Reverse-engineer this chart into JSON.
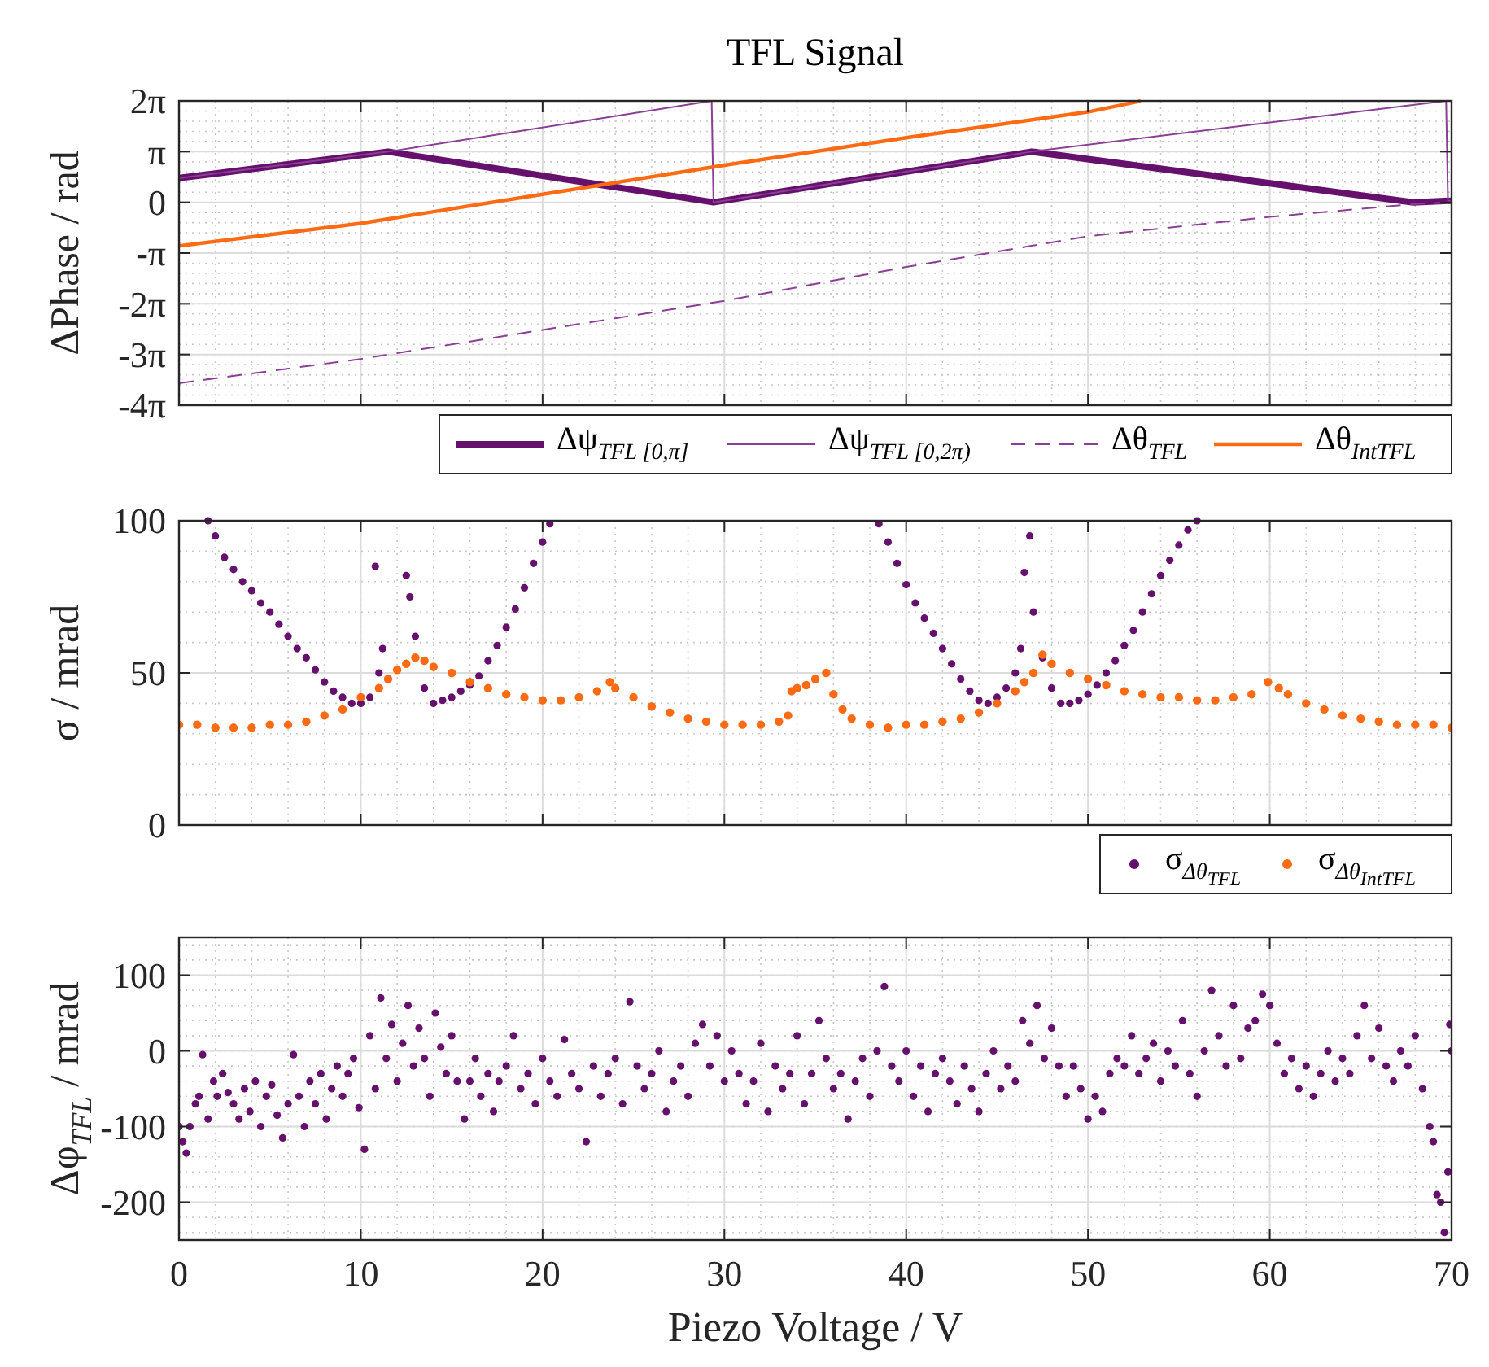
{
  "chart_data": [
    {
      "type": "line",
      "title": "TFL Signal",
      "ylabel": "ΔPhase / rad",
      "xlim": [
        0,
        70
      ],
      "xticks": [
        0,
        10,
        20,
        30,
        40,
        50,
        60,
        70
      ],
      "ylim": [
        -12.566,
        6.283
      ],
      "yticks": [
        {
          "value": -12.566,
          "label": "-4π"
        },
        {
          "value": -9.425,
          "label": "-3π"
        },
        {
          "value": -6.283,
          "label": "-2π"
        },
        {
          "value": -3.142,
          "label": "-π"
        },
        {
          "value": 0,
          "label": "0"
        },
        {
          "value": 3.142,
          "label": "π"
        },
        {
          "value": 6.283,
          "label": "2π"
        }
      ],
      "tick_labels": "y",
      "grid": true,
      "legend": "bottom",
      "series": [
        {
          "name": "Δψ$_{TFL [0,π]}$",
          "color": "#66106e",
          "line_style": "solid",
          "x": [
            0,
            11.5,
            29.4,
            46.9,
            67.9,
            70
          ],
          "values": [
            1.5,
            3.14,
            0,
            3.14,
            0,
            0.1
          ]
        },
        {
          "name": "Δψ$_{TFL [0,2π)}$",
          "color": "#8a3f94",
          "line_style": "solid",
          "x": [
            0,
            11.5,
            29.3,
            29.4,
            46.9,
            69.7,
            69.8,
            70
          ],
          "values": [
            1.5,
            3.14,
            6.28,
            0,
            3.14,
            6.28,
            0.1,
            0.1
          ]
        },
        {
          "name": "Δθ$_{TFL}$",
          "color": "#8a3f94",
          "line_style": "dashed",
          "x": [
            0,
            10,
            20,
            30,
            40,
            50,
            60,
            68,
            70
          ],
          "values": [
            -11.2,
            -9.7,
            -7.9,
            -6.1,
            -4,
            -2.1,
            -0.9,
            -0.1,
            0
          ]
        },
        {
          "name": "Δθ$_{IntTFL}$",
          "color": "#ff6a13",
          "line_style": "solid",
          "x": [
            0,
            10,
            20,
            30,
            40,
            50,
            52.9
          ],
          "values": [
            -2.7,
            -1.3,
            0.5,
            2.3,
            4,
            5.6,
            6.28
          ]
        }
      ]
    },
    {
      "type": "scatter",
      "ylabel": "σ / mrad",
      "xlim": [
        0,
        70
      ],
      "xticks": [
        0,
        10,
        20,
        30,
        40,
        50,
        60,
        70
      ],
      "ylim": [
        0,
        100
      ],
      "yticks": [
        0,
        50,
        100
      ],
      "tick_labels": "y",
      "grid": true,
      "legend": "bottom right",
      "marker": "circle",
      "series": [
        {
          "name": "σ$_{Δθ}$$_{TFL}$",
          "color": "#66106e",
          "x": [
            1.6,
            2,
            2.5,
            3,
            3.5,
            4,
            4.5,
            5,
            5.5,
            6,
            6.5,
            7,
            7.5,
            8,
            8.5,
            9,
            9.5,
            10,
            10.5,
            11,
            11.2,
            10.8,
            12.5,
            12.7,
            13,
            13.5,
            14,
            14.5,
            15,
            15.5,
            16,
            16.5,
            17,
            17.5,
            18,
            18.5,
            19,
            19.5,
            20,
            20.4,
            38.5,
            39,
            39.5,
            40,
            40.5,
            41,
            41.5,
            42,
            42.5,
            43,
            43.5,
            44,
            44.5,
            45,
            45.5,
            46,
            46.3,
            46.5,
            46.8,
            47,
            47.5,
            48,
            48.5,
            49,
            49.5,
            50,
            50.5,
            51,
            51.5,
            52,
            52.5,
            53,
            53.5,
            54,
            54.5,
            55,
            55.5,
            56
          ],
          "values": [
            100,
            95,
            88,
            84,
            80,
            77,
            73,
            70,
            66,
            62,
            58,
            55,
            51,
            47,
            44,
            42,
            40,
            40,
            42,
            50,
            58,
            85,
            82,
            75,
            62,
            45,
            40,
            41,
            42,
            44,
            46,
            49,
            54,
            59,
            65,
            71,
            78,
            86,
            93,
            99,
            99,
            93,
            86,
            79,
            73,
            68,
            63,
            58,
            53,
            48,
            44,
            41,
            40,
            42,
            45,
            50,
            58,
            83,
            95,
            70,
            55,
            45,
            40,
            40,
            41,
            43,
            46,
            50,
            54,
            59,
            64,
            70,
            76,
            82,
            87,
            92,
            97,
            100
          ]
        },
        {
          "name": "σ$_{Δθ}$$_{IntTFL}$",
          "color": "#ff6a13",
          "x": [
            0,
            1,
            2,
            3,
            4,
            5,
            6,
            7,
            8,
            9,
            10,
            11,
            11.5,
            12,
            12.5,
            13,
            13.5,
            14,
            15,
            16,
            17,
            18,
            19,
            20,
            21,
            22,
            23,
            23.7,
            24,
            25,
            26,
            27,
            28,
            29,
            30,
            31,
            32,
            33,
            33.5,
            33.7,
            34,
            34.5,
            35,
            35.6,
            36,
            36.5,
            37,
            38,
            39,
            40,
            41,
            42,
            43,
            44,
            45,
            46,
            46.5,
            47,
            47.5,
            48,
            49,
            50,
            51,
            52,
            53,
            54,
            55,
            56,
            57,
            58,
            59,
            59.9,
            60.5,
            61,
            62,
            63,
            64,
            65,
            66,
            67,
            68,
            69,
            70
          ],
          "values": [
            33,
            33,
            32,
            32,
            32,
            33,
            33,
            34,
            36,
            38,
            42,
            45,
            48,
            51,
            53,
            55,
            54,
            52,
            50,
            47,
            45,
            43,
            42,
            41,
            41,
            42,
            44,
            47,
            45,
            42,
            39,
            37,
            35,
            34,
            33,
            33,
            33,
            34,
            36,
            44,
            45,
            46,
            48,
            50,
            43,
            38,
            35,
            33,
            32,
            33,
            33,
            34,
            35,
            37,
            40,
            44,
            47,
            50,
            56,
            53,
            50,
            48,
            46,
            44,
            43,
            42,
            42,
            41,
            41,
            42,
            43,
            47,
            45,
            43,
            40,
            38,
            36,
            35,
            34,
            33,
            33,
            33,
            32
          ]
        }
      ]
    },
    {
      "type": "scatter",
      "xlabel": "Piezo Voltage / V",
      "ylabel": "Δφ$_{TFL}$ / mrad",
      "xlim": [
        0,
        70
      ],
      "xticks": [
        0,
        10,
        20,
        30,
        40,
        50,
        60,
        70
      ],
      "ylim": [
        -250,
        150
      ],
      "yticks": [
        -200,
        -100,
        0,
        100
      ],
      "grid": true,
      "marker": "circle",
      "series": [
        {
          "color": "#66106e",
          "x": [
            0,
            0.2,
            0.4,
            0.6,
            0.9,
            1.1,
            1.3,
            1.6,
            1.9,
            2.1,
            2.4,
            2.7,
            3,
            3.3,
            3.6,
            3.9,
            4.2,
            4.5,
            4.8,
            5.1,
            5.4,
            5.7,
            6,
            6.3,
            6.6,
            6.9,
            7.2,
            7.5,
            7.8,
            8.1,
            8.4,
            8.7,
            9,
            9.3,
            9.6,
            9.9,
            10.2,
            10.5,
            10.8,
            11.1,
            11.4,
            11.7,
            12,
            12.3,
            12.6,
            12.9,
            13.2,
            13.5,
            13.8,
            14.1,
            14.4,
            14.7,
            15,
            15.3,
            15.7,
            16,
            16.3,
            16.6,
            17,
            17.3,
            17.6,
            18,
            18.4,
            18.8,
            19.2,
            19.6,
            20,
            20.4,
            20.8,
            21.2,
            21.6,
            22,
            22.4,
            22.8,
            23.2,
            23.6,
            24,
            24.4,
            24.8,
            25.2,
            25.6,
            26,
            26.4,
            26.8,
            27.2,
            27.6,
            28,
            28.4,
            28.8,
            29.2,
            29.6,
            30,
            30.4,
            30.8,
            31.2,
            31.6,
            32,
            32.4,
            32.8,
            33.2,
            33.6,
            34,
            34.4,
            34.8,
            35.2,
            35.6,
            36,
            36.4,
            36.8,
            37.2,
            37.6,
            38,
            38.4,
            38.8,
            39.2,
            39.6,
            40,
            40.4,
            40.8,
            41.2,
            41.6,
            42,
            42.4,
            42.8,
            43.2,
            43.6,
            44,
            44.4,
            44.8,
            45.2,
            45.6,
            46,
            46.4,
            46.8,
            47.2,
            47.6,
            48,
            48.4,
            48.8,
            49.2,
            49.6,
            50,
            50.4,
            50.8,
            51.2,
            51.6,
            52,
            52.4,
            52.8,
            53.2,
            53.6,
            54,
            54.4,
            54.8,
            55.2,
            55.6,
            56,
            56.4,
            56.8,
            57.2,
            57.6,
            58,
            58.4,
            58.8,
            59.2,
            59.6,
            60,
            60.4,
            60.8,
            61.2,
            61.6,
            62,
            62.4,
            62.8,
            63.2,
            63.6,
            64,
            64.4,
            64.8,
            65.2,
            65.6,
            66,
            66.4,
            66.8,
            67.2,
            67.6,
            68,
            68.4,
            68.8,
            69,
            69.2,
            69.4,
            69.6,
            69.8,
            69.9,
            70
          ],
          "values": [
            -100,
            -120,
            -135,
            -100,
            -70,
            -60,
            -5,
            -90,
            -40,
            -60,
            -30,
            -55,
            -70,
            -90,
            -50,
            -80,
            -40,
            -100,
            -60,
            -45,
            -85,
            -115,
            -70,
            -5,
            -60,
            -100,
            -40,
            -70,
            -30,
            -90,
            -50,
            -20,
            -60,
            -30,
            -10,
            -75,
            -130,
            20,
            -50,
            70,
            -10,
            35,
            -40,
            10,
            60,
            -20,
            30,
            -10,
            -60,
            50,
            5,
            -30,
            20,
            -40,
            -90,
            -40,
            -10,
            -60,
            -30,
            -80,
            -40,
            -20,
            20,
            -50,
            -30,
            -70,
            -10,
            -40,
            -60,
            15,
            -30,
            -50,
            -120,
            -20,
            -60,
            -30,
            -10,
            -70,
            65,
            -20,
            -50,
            -30,
            0,
            -80,
            -40,
            -20,
            -60,
            10,
            35,
            -20,
            20,
            -40,
            0,
            -30,
            -70,
            -40,
            10,
            -80,
            -20,
            -50,
            -30,
            20,
            -70,
            -30,
            40,
            -10,
            -50,
            -30,
            -90,
            -40,
            -10,
            -60,
            0,
            85,
            -20,
            -40,
            0,
            -60,
            -20,
            -80,
            -30,
            -10,
            -40,
            -70,
            -20,
            -50,
            -80,
            -30,
            0,
            -50,
            -20,
            -40,
            40,
            10,
            60,
            -10,
            30,
            -20,
            -60,
            -20,
            -50,
            -90,
            -60,
            -80,
            -30,
            -10,
            -20,
            20,
            -30,
            -10,
            10,
            -40,
            0,
            -20,
            40,
            -30,
            -60,
            0,
            80,
            20,
            -20,
            60,
            -10,
            30,
            40,
            75,
            60,
            10,
            -30,
            -10,
            -50,
            -20,
            -60,
            -30,
            0,
            -40,
            -10,
            -30,
            20,
            60,
            -10,
            30,
            -20,
            -40,
            0,
            -20,
            20,
            -50,
            -100,
            -120,
            -190,
            -200,
            -240,
            -160,
            35,
            0
          ]
        }
      ]
    }
  ]
}
